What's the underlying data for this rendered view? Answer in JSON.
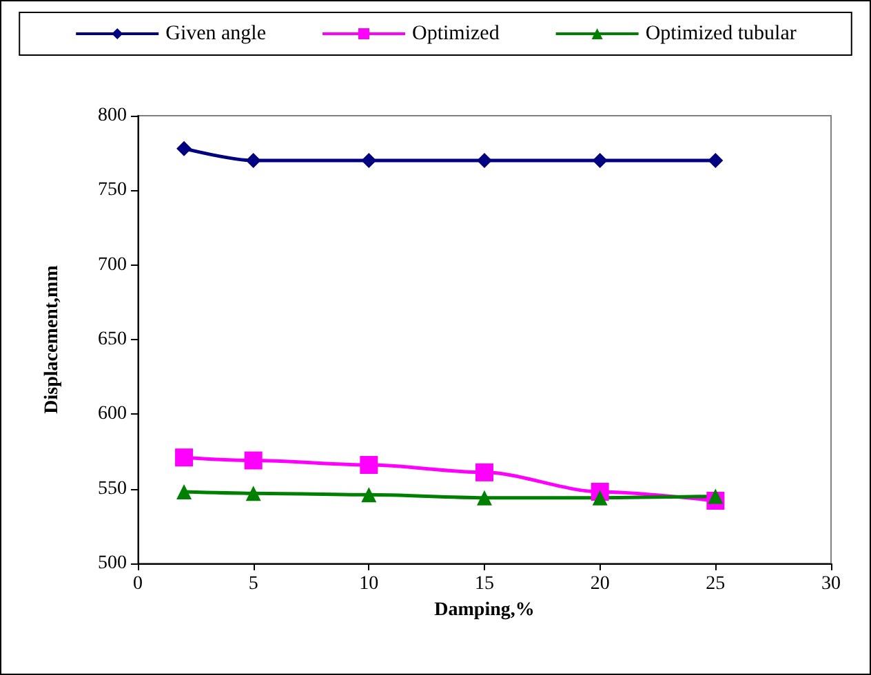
{
  "chart_data": {
    "type": "line",
    "xlabel": "Damping,%",
    "ylabel": "Displacement,mm",
    "x": [
      2,
      5,
      10,
      15,
      20,
      25
    ],
    "series": [
      {
        "name": "Given angle",
        "color": "#000080",
        "marker": "diamond",
        "values": [
          778,
          770,
          770,
          770,
          770,
          770
        ]
      },
      {
        "name": "Optimized",
        "color": "#ff00ff",
        "marker": "square",
        "values": [
          571,
          569,
          566,
          561,
          548,
          542
        ]
      },
      {
        "name": "Optimized tubular",
        "color": "#008000",
        "marker": "triangle",
        "values": [
          548,
          547,
          546,
          544,
          544,
          545
        ]
      }
    ],
    "xlim": [
      0,
      30
    ],
    "xticks": [
      0,
      5,
      10,
      15,
      20,
      25,
      30
    ],
    "ylim": [
      500,
      800
    ],
    "yticks": [
      500,
      550,
      600,
      650,
      700,
      750,
      800
    ],
    "grid": false,
    "legend": "top",
    "line_style": "solid"
  }
}
